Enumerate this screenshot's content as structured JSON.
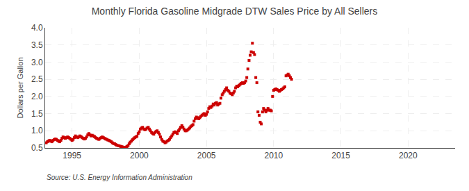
{
  "chart_data": {
    "type": "scatter",
    "title": "Monthly Florida Gasoline Midgrade DTW Sales Price by All Sellers",
    "ylabel": "Dollars per Gallon",
    "annotations": [
      "Source: U.S. Energy Information Administration"
    ],
    "color": "#cc0000",
    "marker": "square",
    "grid": true,
    "xlim": [
      1993.0,
      2023.5
    ],
    "xticks": [
      1995,
      2000,
      2005,
      2010,
      2015,
      2020
    ],
    "ylim": [
      0.5,
      4.0
    ],
    "yticks": [
      0.5,
      {
        "value": 1.0,
        "label": "1.0"
      },
      1.5,
      {
        "value": 2.0,
        "label": "2.0"
      },
      2.5,
      {
        "value": 3.0,
        "label": "3.0"
      },
      3.5,
      {
        "value": 4.0,
        "label": "4.0"
      }
    ],
    "x": [
      1993.08,
      1993.17,
      1993.25,
      1993.33,
      1993.42,
      1993.5,
      1993.58,
      1993.67,
      1993.75,
      1993.83,
      1993.92,
      1994.0,
      1994.08,
      1994.17,
      1994.25,
      1994.33,
      1994.42,
      1994.5,
      1994.58,
      1994.67,
      1994.75,
      1994.83,
      1994.92,
      1995.0,
      1995.08,
      1995.17,
      1995.25,
      1995.33,
      1995.42,
      1995.5,
      1995.58,
      1995.67,
      1995.75,
      1995.83,
      1995.92,
      1996.0,
      1996.08,
      1996.17,
      1996.25,
      1996.33,
      1996.42,
      1996.5,
      1996.58,
      1996.67,
      1996.75,
      1996.83,
      1996.92,
      1997.0,
      1997.08,
      1997.17,
      1997.25,
      1997.33,
      1997.42,
      1997.5,
      1997.58,
      1997.67,
      1997.75,
      1997.83,
      1997.92,
      1998.0,
      1998.08,
      1998.17,
      1998.25,
      1998.33,
      1998.42,
      1998.5,
      1998.58,
      1998.67,
      1998.75,
      1998.83,
      1998.92,
      1999.0,
      1999.08,
      1999.17,
      1999.25,
      1999.33,
      1999.42,
      1999.5,
      1999.58,
      1999.67,
      1999.75,
      1999.83,
      1999.92,
      2000.0,
      2000.08,
      2000.17,
      2000.25,
      2000.33,
      2000.42,
      2000.5,
      2000.58,
      2000.67,
      2000.75,
      2000.83,
      2000.92,
      2001.0,
      2001.08,
      2001.17,
      2001.25,
      2001.33,
      2001.42,
      2001.5,
      2001.58,
      2001.67,
      2001.75,
      2001.83,
      2001.92,
      2002.0,
      2002.08,
      2002.17,
      2002.25,
      2002.33,
      2002.42,
      2002.5,
      2002.58,
      2002.67,
      2002.75,
      2002.83,
      2002.92,
      2003.0,
      2003.08,
      2003.17,
      2003.25,
      2003.33,
      2003.42,
      2003.5,
      2003.58,
      2003.67,
      2003.75,
      2003.83,
      2003.92,
      2004.0,
      2004.08,
      2004.17,
      2004.25,
      2004.33,
      2004.42,
      2004.5,
      2004.58,
      2004.67,
      2004.75,
      2004.83,
      2004.92,
      2005.0,
      2005.08,
      2005.17,
      2005.25,
      2005.33,
      2005.42,
      2005.5,
      2005.58,
      2005.67,
      2005.75,
      2005.83,
      2005.92,
      2006.0,
      2006.08,
      2006.17,
      2006.25,
      2006.33,
      2006.42,
      2006.5,
      2006.58,
      2006.67,
      2006.75,
      2006.83,
      2006.92,
      2007.0,
      2007.08,
      2007.17,
      2007.25,
      2007.33,
      2007.42,
      2007.5,
      2007.58,
      2007.67,
      2007.75,
      2007.83,
      2007.92,
      2008.0,
      2008.08,
      2008.17,
      2008.25,
      2008.33,
      2008.42,
      2008.5,
      2008.58,
      2008.67,
      2008.75,
      2008.83,
      2008.92,
      2009.0,
      2009.08,
      2009.17,
      2009.25,
      2009.33,
      2009.42,
      2009.5,
      2009.58,
      2009.67,
      2009.75,
      2009.83,
      2009.92,
      2010.0,
      2010.08,
      2010.17,
      2010.25,
      2010.33,
      2010.42,
      2010.5,
      2010.58,
      2010.67,
      2010.75,
      2010.83,
      2010.92,
      2011.0,
      2011.08,
      2011.17,
      2011.25,
      2011.33
    ],
    "values": [
      0.65,
      0.68,
      0.7,
      0.72,
      0.7,
      0.68,
      0.72,
      0.74,
      0.76,
      0.75,
      0.72,
      0.7,
      0.68,
      0.72,
      0.78,
      0.82,
      0.8,
      0.78,
      0.8,
      0.82,
      0.8,
      0.78,
      0.75,
      0.72,
      0.75,
      0.8,
      0.85,
      0.82,
      0.8,
      0.82,
      0.85,
      0.83,
      0.8,
      0.78,
      0.76,
      0.78,
      0.82,
      0.88,
      0.92,
      0.88,
      0.85,
      0.87,
      0.85,
      0.83,
      0.8,
      0.78,
      0.76,
      0.75,
      0.78,
      0.8,
      0.82,
      0.8,
      0.78,
      0.76,
      0.75,
      0.73,
      0.72,
      0.7,
      0.68,
      0.65,
      0.63,
      0.62,
      0.6,
      0.58,
      0.57,
      0.56,
      0.55,
      0.54,
      0.53,
      0.52,
      0.51,
      0.52,
      0.54,
      0.57,
      0.62,
      0.67,
      0.7,
      0.74,
      0.77,
      0.8,
      0.82,
      0.84,
      0.92,
      0.97,
      1.05,
      1.08,
      1.1,
      1.05,
      1.03,
      1.05,
      1.08,
      1.1,
      1.05,
      1.0,
      0.95,
      0.92,
      0.9,
      0.95,
      0.98,
      1.0,
      0.95,
      0.9,
      0.82,
      0.75,
      0.7,
      0.68,
      0.65,
      0.67,
      0.7,
      0.72,
      0.75,
      0.8,
      0.85,
      0.9,
      0.95,
      0.97,
      0.95,
      0.92,
      1.0,
      1.05,
      1.1,
      1.15,
      1.1,
      1.05,
      1.0,
      1.0,
      1.02,
      1.05,
      1.08,
      1.12,
      1.15,
      1.18,
      1.28,
      1.35,
      1.4,
      1.38,
      1.35,
      1.38,
      1.42,
      1.45,
      1.48,
      1.5,
      1.45,
      1.48,
      1.55,
      1.65,
      1.7,
      1.68,
      1.72,
      1.78,
      1.75,
      1.8,
      1.82,
      1.75,
      1.78,
      1.8,
      1.95,
      2.05,
      2.1,
      2.15,
      2.2,
      2.25,
      2.18,
      2.15,
      2.1,
      2.08,
      2.05,
      2.1,
      2.15,
      2.25,
      2.3,
      2.28,
      2.32,
      2.35,
      2.38,
      2.4,
      2.38,
      2.4,
      2.45,
      2.55,
      2.8,
      3.05,
      3.2,
      3.3,
      3.55,
      3.28,
      3.22,
      2.55,
      2.4,
      1.55,
      1.45,
      1.25,
      1.2,
      1.55,
      1.65,
      1.6,
      1.55,
      1.6,
      1.65,
      1.6,
      1.6,
      1.58,
      2.0,
      2.18,
      2.2,
      2.22,
      2.2,
      2.18,
      2.15,
      2.18,
      2.2,
      2.22,
      2.25,
      2.28,
      2.6,
      2.62,
      2.65,
      2.6,
      2.55,
      2.5
    ]
  }
}
